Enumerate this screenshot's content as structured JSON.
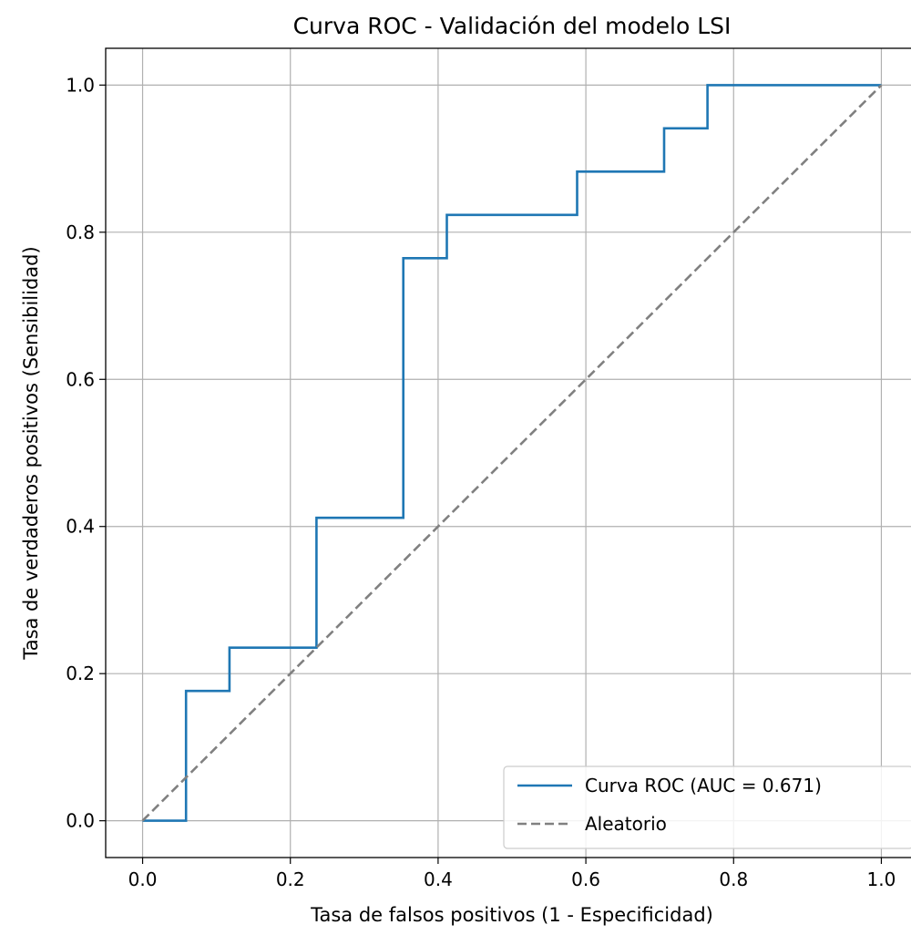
{
  "chart_data": {
    "type": "line",
    "title": "Curva ROC - Validación del modelo LSI",
    "xlabel": "Tasa de falsos positivos (1 - Especificidad)",
    "ylabel": "Tasa de verdaderos positivos (Sensibilidad)",
    "xlim": [
      -0.05,
      1.05
    ],
    "ylim": [
      -0.05,
      1.05
    ],
    "xticks": [
      "0.0",
      "0.2",
      "0.4",
      "0.6",
      "0.8",
      "1.0"
    ],
    "yticks": [
      "0.0",
      "0.2",
      "0.4",
      "0.6",
      "0.8",
      "1.0"
    ],
    "grid": true,
    "legend_position": "lower right",
    "series": [
      {
        "name": "Curva ROC (AUC = 0.671)",
        "color": "#1f77b4",
        "style": "solid",
        "step": true,
        "x": [
          0.0,
          0.0588,
          0.0588,
          0.1176,
          0.1176,
          0.2353,
          0.2353,
          0.3529,
          0.3529,
          0.4118,
          0.4118,
          0.5882,
          0.5882,
          0.7059,
          0.7059,
          0.7647,
          0.7647,
          1.0
        ],
        "y": [
          0.0,
          0.0,
          0.1765,
          0.1765,
          0.2353,
          0.2353,
          0.4118,
          0.4118,
          0.7647,
          0.7647,
          0.8235,
          0.8235,
          0.8824,
          0.8824,
          0.9412,
          0.9412,
          1.0,
          1.0
        ]
      },
      {
        "name": "Aleatorio",
        "color": "#808080",
        "style": "dashed",
        "x": [
          0.0,
          1.0
        ],
        "y": [
          0.0,
          1.0
        ]
      }
    ]
  }
}
